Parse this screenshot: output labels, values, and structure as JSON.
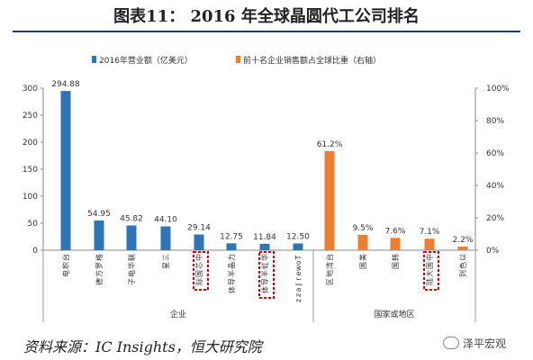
{
  "title": "图表11： 2016 年全球晶圆代工公司排名",
  "source": "资料来源：IC Insights，恒大研究院",
  "logo_text": "泽平宏观",
  "chart_data": {
    "type": "bar",
    "legend": [
      {
        "label": "2016年营业额（亿美元）",
        "color": "#2e75b6"
      },
      {
        "label": "前十名企业销售额占全球比重（右轴）",
        "color": "#ed7d31"
      }
    ],
    "left_axis": {
      "min": 0,
      "max": 300,
      "ticks": [
        0,
        50,
        100,
        150,
        200,
        250,
        300
      ]
    },
    "right_axis": {
      "min": 0,
      "max": 100,
      "ticks": [
        "0%",
        "20%",
        "40%",
        "60%",
        "80%",
        "100%"
      ]
    },
    "left_series": {
      "categories": [
        "台积电",
        "格罗方德",
        "联华电子",
        "三星",
        "中芯国际",
        "力晶半导体",
        "华虹半导体",
        "TowerJazz"
      ],
      "values": [
        294.88,
        54.95,
        45.82,
        44.1,
        29.14,
        12.75,
        11.84,
        12.5
      ],
      "labels": [
        "294.88",
        "54.95",
        "45.82",
        "44.10",
        "29.14",
        "12.75",
        "11.84",
        "12.50"
      ]
    },
    "right_series": {
      "categories": [
        "台湾地区",
        "美国",
        "韩国",
        "中国大陆",
        "以色列"
      ],
      "values": [
        61.2,
        9.5,
        7.6,
        7.1,
        2.2
      ],
      "labels": [
        "61.2%",
        "9.5%",
        "7.6%",
        "7.1%",
        "2.2%"
      ]
    },
    "highlighted": [
      "中芯国际",
      "华虹半导体",
      "中国大陆"
    ],
    "groups": [
      "企业",
      "国家或地区"
    ]
  }
}
